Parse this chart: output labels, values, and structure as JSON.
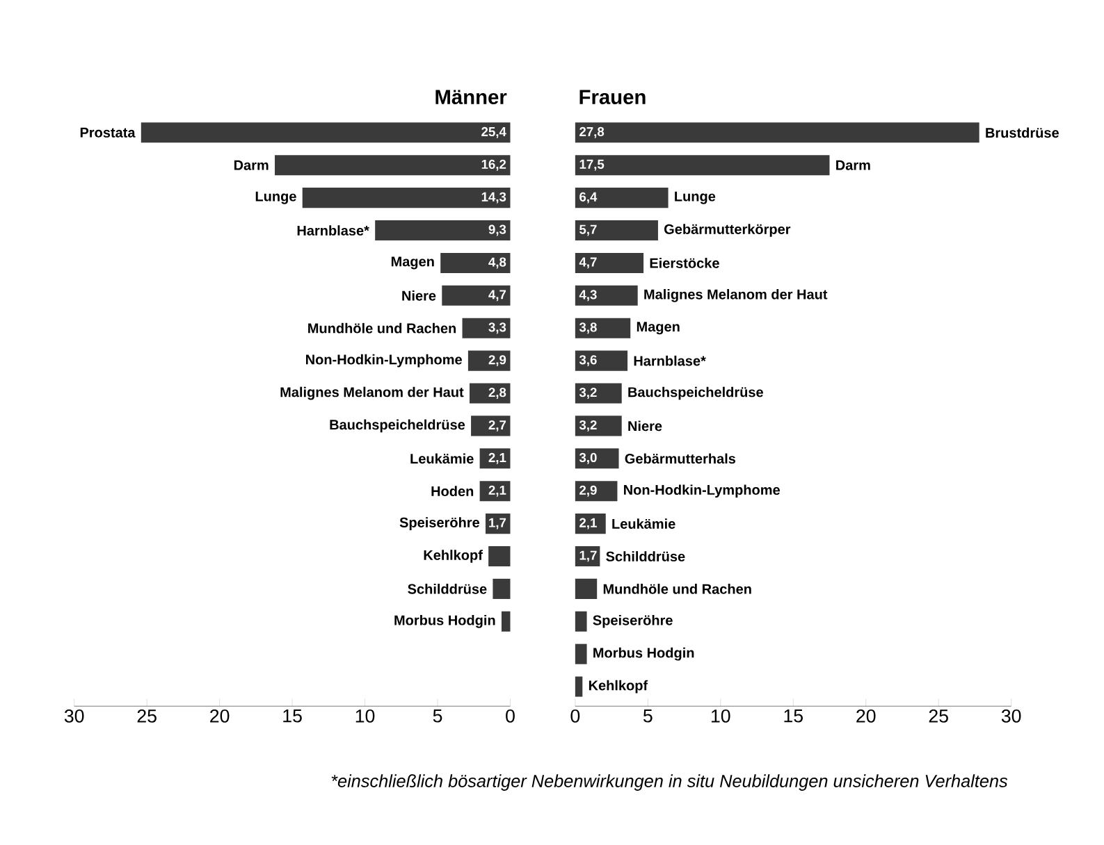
{
  "chart_data": [
    {
      "type": "bar",
      "orientation": "horizontal",
      "title": "Männer",
      "color": "#3a3a3a",
      "categories": [
        "Prostata",
        "Darm",
        "Lunge",
        "Harnblase*",
        "Magen",
        "Niere",
        "Mundhöle und Rachen",
        "Non-Hodkin-Lymphome",
        "Malignes Melanom der Haut",
        "Bauchspeicheldrüse",
        "Leukämie",
        "Hoden",
        "Speiseröhre",
        "Kehlkopf",
        "Schilddrüse",
        "Morbus Hodgin"
      ],
      "values": [
        25.4,
        16.2,
        14.3,
        9.3,
        4.8,
        4.7,
        3.3,
        2.9,
        2.8,
        2.7,
        2.1,
        2.1,
        1.7,
        1.5,
        1.2,
        0.6
      ],
      "value_labels": [
        "25,4",
        "16,2",
        "14,3",
        "9,3",
        "4,8",
        "4,7",
        "3,3",
        "2,9",
        "2,8",
        "2,7",
        "2,1",
        "2,1",
        "1,7",
        null,
        null,
        null
      ],
      "xlim": [
        30,
        0
      ],
      "xticks": [
        30,
        25,
        20,
        15,
        10,
        5,
        0
      ]
    },
    {
      "type": "bar",
      "orientation": "horizontal",
      "title": "Frauen",
      "color": "#3a3a3a",
      "categories": [
        "Brustdrüse",
        "Darm",
        "Lunge",
        "Gebärmutterkörper",
        "Eierstöcke",
        "Malignes Melanom der Haut",
        "Magen",
        "Harnblase*",
        "Bauchspeicheldrüse",
        "Niere",
        "Gebärmutterhals",
        "Non-Hodkin-Lymphome",
        "Leukämie",
        "Schilddrüse",
        "Mundhöle und Rachen",
        "Speiseröhre",
        "Morbus Hodgin",
        "Kehlkopf"
      ],
      "values": [
        27.8,
        17.5,
        6.4,
        5.7,
        4.7,
        4.3,
        3.8,
        3.6,
        3.2,
        3.2,
        3.0,
        2.9,
        2.1,
        1.7,
        1.5,
        0.8,
        0.8,
        0.5
      ],
      "value_labels": [
        "27,8",
        "17,5",
        "6,4",
        "5,7",
        "4,7",
        "4,3",
        "3,8",
        "3,6",
        "3,2",
        "3,2",
        "3,0",
        "2,9",
        "2,1",
        "1,7",
        null,
        null,
        null,
        null
      ],
      "xlim": [
        0,
        30
      ],
      "xticks": [
        0,
        5,
        10,
        15,
        20,
        25,
        30
      ],
      "annotations": [
        "*einschließlich bösartiger Nebenwirkungen in situ Neubildungen unsicheren Verhaltens"
      ]
    }
  ]
}
